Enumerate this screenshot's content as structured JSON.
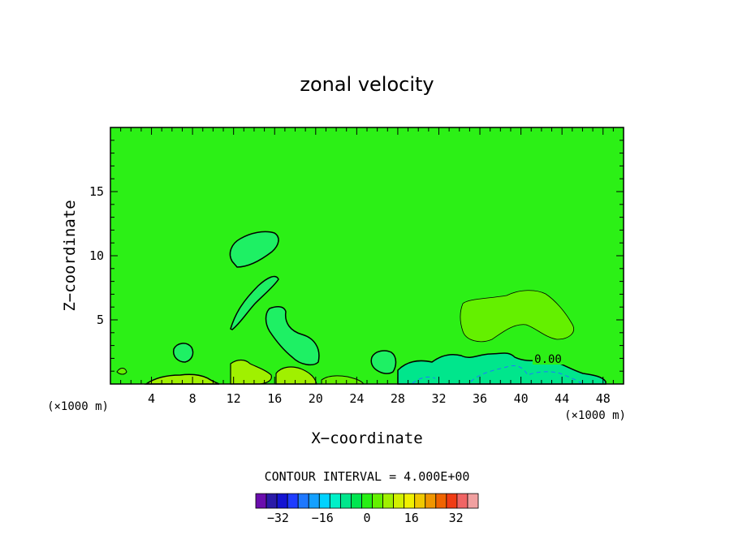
{
  "chart_data": {
    "type": "heatmap",
    "title": "zonal velocity",
    "xlabel": "X−coordinate",
    "ylabel": "Z−coordinate",
    "x_units": "(×1000 m)",
    "x_ticks": [
      4,
      8,
      12,
      16,
      20,
      24,
      28,
      32,
      36,
      40,
      44,
      48
    ],
    "y_ticks": [
      5,
      10,
      15
    ],
    "xlim": [
      0,
      50
    ],
    "ylim": [
      0,
      20
    ],
    "contour_interval_text": "CONTOUR INTERVAL = 4.000E+00",
    "contour_label": "0.00",
    "colorbar": {
      "levels": [
        -40,
        -36,
        -32,
        -28,
        -24,
        -20,
        -16,
        -12,
        -8,
        -4,
        0,
        4,
        8,
        12,
        16,
        20,
        24,
        28,
        32,
        36,
        40
      ],
      "tick_labels": [
        "−32",
        "−16",
        "0",
        "16",
        "32"
      ],
      "tick_values": [
        -32,
        -16,
        0,
        16,
        32
      ],
      "colors": [
        "#6a0dad",
        "#2a1aa8",
        "#1414d2",
        "#1e3cff",
        "#1e78ff",
        "#14a0ff",
        "#00d2ff",
        "#00f0c8",
        "#00e68c",
        "#00e650",
        "#28f014",
        "#64f000",
        "#a0f000",
        "#d2f000",
        "#f0f000",
        "#f0c800",
        "#f09600",
        "#f06400",
        "#f03c14",
        "#f06464",
        "#f0a0a0"
      ]
    },
    "background_color": "#2cf016"
  }
}
